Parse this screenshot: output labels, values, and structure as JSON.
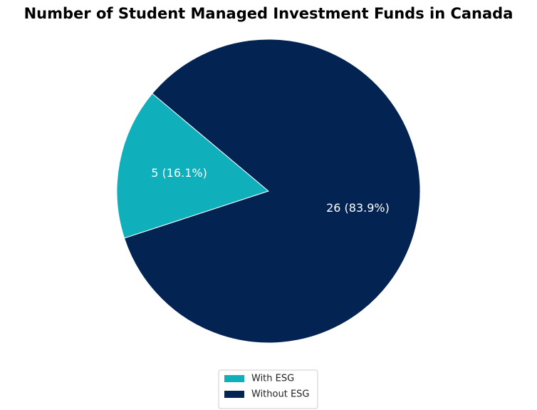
{
  "chart_data": {
    "type": "pie",
    "title": "Number of Student Managed Investment Funds in Canada",
    "categories": [
      "With ESG",
      "Without ESG"
    ],
    "values": [
      5,
      26
    ],
    "value_labels": [
      "5 (16.1%)",
      "26 (83.9%)"
    ],
    "colors": [
      "#0fb0bc",
      "#032452"
    ],
    "legend": "bottom"
  }
}
